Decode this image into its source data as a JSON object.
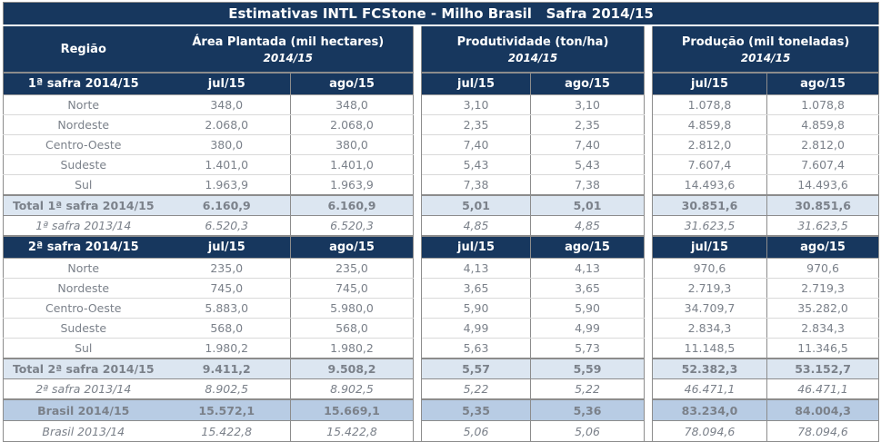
{
  "chart_data": {
    "type": "table",
    "title": "Estimativas INTL FCStone - Milho Brasil   Safra 2014/15",
    "region_header": "Região",
    "column_groups": [
      {
        "label": "Área Plantada (mil hectares)",
        "sub": "2014/15"
      },
      {
        "label": "Produtividade (ton/ha)",
        "sub": "2014/15"
      },
      {
        "label": "Produção (mil toneladas)",
        "sub": "2014/15"
      }
    ],
    "col_headers": [
      "jul/15",
      "ago/15"
    ],
    "rows": [
      {
        "type": "section",
        "label": "1ª safra 2014/15",
        "values": []
      },
      {
        "type": "data",
        "label": "Norte",
        "values": [
          "348,0",
          "348,0",
          "3,10",
          "3,10",
          "1.078,8",
          "1.078,8"
        ]
      },
      {
        "type": "data",
        "label": "Nordeste",
        "values": [
          "2.068,0",
          "2.068,0",
          "2,35",
          "2,35",
          "4.859,8",
          "4.859,8"
        ]
      },
      {
        "type": "data",
        "label": "Centro-Oeste",
        "values": [
          "380,0",
          "380,0",
          "7,40",
          "7,40",
          "2.812,0",
          "2.812,0"
        ]
      },
      {
        "type": "data",
        "label": "Sudeste",
        "values": [
          "1.401,0",
          "1.401,0",
          "5,43",
          "5,43",
          "7.607,4",
          "7.607,4"
        ]
      },
      {
        "type": "data",
        "label": "Sul",
        "values": [
          "1.963,9",
          "1.963,9",
          "7,38",
          "7,38",
          "14.493,6",
          "14.493,6"
        ]
      },
      {
        "type": "total",
        "label": "Total 1ª safra 2014/15",
        "values": [
          "6.160,9",
          "6.160,9",
          "5,01",
          "5,01",
          "30.851,6",
          "30.851,6"
        ]
      },
      {
        "type": "prior",
        "label": "1ª safra 2013/14",
        "values": [
          "6.520,3",
          "6.520,3",
          "4,85",
          "4,85",
          "31.623,5",
          "31.623,5"
        ]
      },
      {
        "type": "section",
        "label": "2ª safra 2014/15",
        "values": []
      },
      {
        "type": "data",
        "label": "Norte",
        "values": [
          "235,0",
          "235,0",
          "4,13",
          "4,13",
          "970,6",
          "970,6"
        ]
      },
      {
        "type": "data",
        "label": "Nordeste",
        "values": [
          "745,0",
          "745,0",
          "3,65",
          "3,65",
          "2.719,3",
          "2.719,3"
        ]
      },
      {
        "type": "data",
        "label": "Centro-Oeste",
        "values": [
          "5.883,0",
          "5.980,0",
          "5,90",
          "5,90",
          "34.709,7",
          "35.282,0"
        ]
      },
      {
        "type": "data",
        "label": "Sudeste",
        "values": [
          "568,0",
          "568,0",
          "4,99",
          "4,99",
          "2.834,3",
          "2.834,3"
        ]
      },
      {
        "type": "data",
        "label": "Sul",
        "values": [
          "1.980,2",
          "1.980,2",
          "5,63",
          "5,73",
          "11.148,5",
          "11.346,5"
        ]
      },
      {
        "type": "total",
        "label": "Total 2ª safra 2014/15",
        "values": [
          "9.411,2",
          "9.508,2",
          "5,57",
          "5,59",
          "52.382,3",
          "53.152,7"
        ]
      },
      {
        "type": "prior",
        "label": "2ª safra 2013/14",
        "values": [
          "8.902,5",
          "8.902,5",
          "5,22",
          "5,22",
          "46.471,1",
          "46.471,1"
        ]
      },
      {
        "type": "grand",
        "label": "Brasil 2014/15",
        "values": [
          "15.572,1",
          "15.669,1",
          "5,35",
          "5,36",
          "83.234,0",
          "84.004,3"
        ]
      },
      {
        "type": "grand_prior",
        "label": "Brasil 2013/14",
        "values": [
          "15.422,8",
          "15.422,8",
          "5,06",
          "5,06",
          "78.094,6",
          "78.094,6"
        ]
      }
    ],
    "colors": {
      "navy": "#17375E",
      "total_row_bg": "#DCE6F1",
      "grand_row_bg": "#B8CCE4",
      "data_text": "#7B818A",
      "border_gray": "#8C8C8C"
    }
  }
}
